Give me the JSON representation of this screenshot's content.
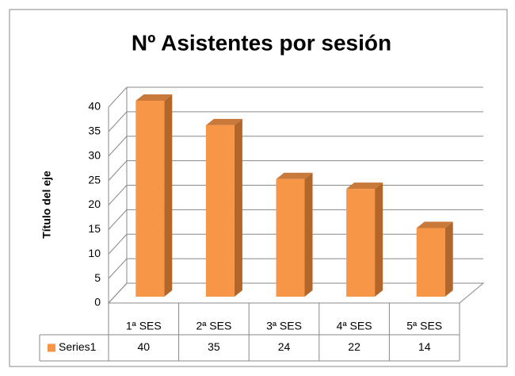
{
  "chart_data": {
    "type": "bar",
    "title": "Nº Asistentes por sesión",
    "y_axis_label": "Título del eje",
    "categories": [
      "1ª SES",
      "2ª SES",
      "3ª SES",
      "4ª SES",
      "5ª SES"
    ],
    "series": [
      {
        "name": "Series1",
        "color": "#f79646",
        "values": [
          40,
          35,
          24,
          22,
          14
        ]
      }
    ],
    "ylim": [
      0,
      40
    ],
    "yticks": [
      0,
      5,
      10,
      15,
      20,
      25,
      30,
      35,
      40
    ],
    "grid": true
  }
}
